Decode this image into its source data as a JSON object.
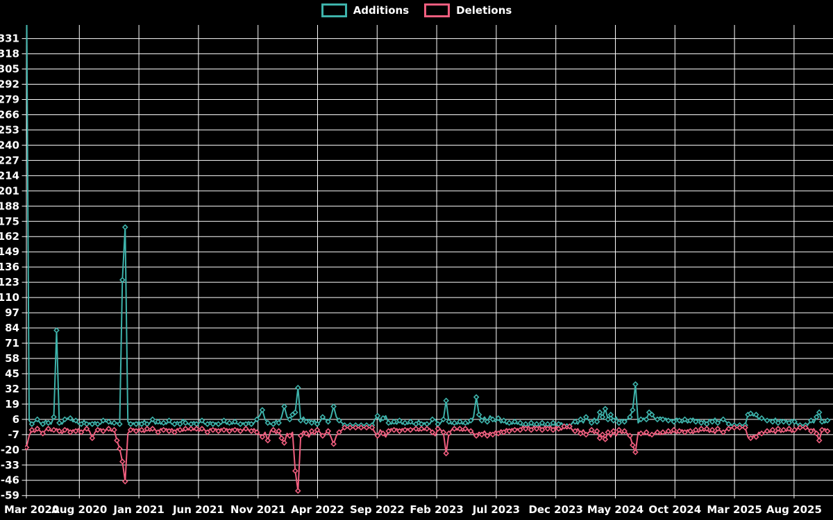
{
  "legend": {
    "items": [
      {
        "label": "Additions"
      },
      {
        "label": "Deletions"
      }
    ]
  },
  "chart_data": {
    "type": "line",
    "background": "#000000",
    "grid": "on",
    "grid_color": "#ffffff",
    "text_color": "#ffffff",
    "legend_position": "top-center",
    "x_unit": "weeks from Mar 2020 to Sep 2025",
    "x_tick_labels": [
      "Mar 2020",
      "Aug 2020",
      "Jan 2021",
      "Jun 2021",
      "Nov 2021",
      "Apr 2022",
      "Sep 2022",
      "Feb 2023",
      "Jul 2023",
      "Dec 2023",
      "May 2024",
      "Oct 2024",
      "Mar 2025",
      "Aug 2025"
    ],
    "y_tick_labels": [
      "331",
      "318",
      "305",
      "292",
      "279",
      "266",
      "253",
      "240",
      "227",
      "214",
      "201",
      "188",
      "175",
      "162",
      "149",
      "136",
      "123",
      "110",
      "97",
      "84",
      "71",
      "58",
      "45",
      "32",
      "19",
      "6",
      "-7",
      "-20",
      "-33",
      "-46",
      "-59"
    ],
    "ylim": [
      -59,
      331
    ],
    "ytick_step": 13,
    "series": [
      {
        "name": "Additions",
        "color": "#3eb3ab",
        "values": [
          400,
          5,
          2,
          4,
          6,
          3,
          2,
          5,
          3,
          2,
          8,
          82,
          3,
          2,
          6,
          7,
          7,
          4,
          5,
          2,
          2,
          5,
          2,
          3,
          2,
          4,
          2,
          2,
          5,
          4,
          4,
          2,
          3,
          3,
          2,
          125,
          170,
          4,
          2,
          3,
          2,
          4,
          2,
          5,
          2,
          3,
          6,
          2,
          4,
          2,
          3,
          2,
          5,
          2,
          2,
          4,
          2,
          6,
          3,
          2,
          2,
          4,
          2,
          3,
          5,
          2,
          2,
          4,
          2,
          3,
          2,
          2,
          5,
          2,
          3,
          2,
          4,
          2,
          2,
          3,
          2,
          4,
          2,
          3,
          6,
          9,
          14,
          6,
          3,
          2,
          2,
          5,
          3,
          8,
          17,
          8,
          6,
          10,
          12,
          33,
          5,
          8,
          4,
          6,
          3,
          5,
          2,
          4,
          8,
          6,
          4,
          8,
          17,
          8,
          5,
          3,
          1,
          1,
          1,
          1,
          1,
          1,
          1,
          1,
          1,
          1,
          1,
          6,
          9,
          4,
          7,
          9,
          3,
          2,
          4,
          2,
          5,
          2,
          3,
          2,
          4,
          2,
          2,
          5,
          2,
          3,
          2,
          2,
          6,
          6,
          2,
          3,
          6,
          22,
          4,
          2,
          3,
          2,
          4,
          2,
          3,
          2,
          5,
          8,
          25,
          10,
          5,
          8,
          4,
          9,
          6,
          4,
          7,
          3,
          5,
          2,
          3,
          2,
          4,
          2,
          3,
          0,
          2,
          0,
          3,
          0,
          2,
          0,
          3,
          0,
          2,
          0,
          3,
          0,
          2,
          3,
          0,
          2,
          0,
          3,
          4,
          2,
          6,
          3,
          8,
          5,
          3,
          7,
          4,
          12,
          8,
          15,
          6,
          10,
          5,
          8,
          3,
          6,
          4,
          6,
          8,
          14,
          36,
          3,
          6,
          7,
          6,
          12,
          10,
          7,
          6,
          8,
          6,
          7,
          5,
          6,
          4,
          7,
          5,
          3,
          6,
          3,
          5,
          7,
          4,
          6,
          3,
          5,
          2,
          6,
          4,
          7,
          3,
          5,
          6,
          4,
          2,
          1,
          1,
          1,
          1,
          1,
          1,
          10,
          11,
          9,
          10,
          6,
          7,
          6,
          5,
          6,
          4,
          7,
          3,
          6,
          4,
          5,
          3,
          6,
          4,
          2,
          1,
          1,
          1,
          2,
          5,
          3,
          8,
          12,
          4,
          3,
          5,
          6
        ]
      },
      {
        "name": "Deletions",
        "color": "#f15e7f",
        "values": [
          -18,
          -8,
          -3,
          -5,
          -2,
          -4,
          -6,
          -3,
          -2,
          -4,
          -3,
          -2,
          -4,
          -6,
          -3,
          -2,
          -5,
          -3,
          -4,
          -2,
          -5,
          -3,
          -2,
          -4,
          -10,
          -5,
          -3,
          -2,
          -4,
          -3,
          -2,
          -4,
          -3,
          -12,
          -19,
          -30,
          -47,
          -6,
          -3,
          -2,
          -4,
          -2,
          -3,
          -5,
          -2,
          -4,
          -2,
          -3,
          -5,
          -2,
          -3,
          -2,
          -4,
          -2,
          -5,
          -2,
          -3,
          -4,
          -2,
          -3,
          -2,
          -3,
          -2,
          -4,
          -2,
          -3,
          -5,
          -2,
          -3,
          -2,
          -4,
          -2,
          -3,
          -2,
          -4,
          -2,
          -3,
          -2,
          -4,
          -3,
          -2,
          -3,
          -4,
          -2,
          -5,
          -7,
          -9,
          -5,
          -12,
          -4,
          -3,
          -6,
          -4,
          -10,
          -14,
          -6,
          -8,
          -5,
          -38,
          -55,
          -8,
          -4,
          -6,
          -9,
          -4,
          -7,
          -3,
          -5,
          -8,
          -6,
          -4,
          -9,
          -15,
          -8,
          -5,
          -3,
          -1,
          -1,
          -1,
          -1,
          -1,
          -1,
          -1,
          -1,
          -1,
          -1,
          -1,
          -5,
          -8,
          -3,
          -6,
          -9,
          -4,
          -2,
          -3,
          -2,
          -4,
          -2,
          -3,
          -2,
          -3,
          -2,
          -2,
          -4,
          -2,
          -3,
          -2,
          -2,
          -5,
          -8,
          -2,
          -3,
          -5,
          -23,
          -6,
          -3,
          -2,
          -3,
          -2,
          -4,
          -2,
          -3,
          -4,
          -6,
          -8,
          -5,
          -7,
          -4,
          -8,
          -5,
          -7,
          -4,
          -6,
          -3,
          -5,
          -2,
          -4,
          -2,
          -3,
          -2,
          -3,
          0,
          -2,
          0,
          -3,
          0,
          -2,
          0,
          -3,
          0,
          -2,
          0,
          -3,
          0,
          -2,
          -3,
          0,
          -2,
          0,
          -3,
          -4,
          -2,
          -6,
          -3,
          -7,
          -5,
          -3,
          -6,
          -4,
          -10,
          -7,
          -11,
          -5,
          -9,
          -4,
          -8,
          -3,
          -6,
          -4,
          -6,
          -8,
          -16,
          -22,
          -5,
          -6,
          -7,
          -5,
          -8,
          -7,
          -6,
          -5,
          -7,
          -5,
          -6,
          -4,
          -6,
          -3,
          -6,
          -4,
          -3,
          -5,
          -3,
          -4,
          -6,
          -3,
          -5,
          -2,
          -4,
          -2,
          -5,
          -3,
          -6,
          -2,
          -4,
          -5,
          -3,
          -2,
          -1,
          -1,
          -1,
          -1,
          -1,
          -1,
          -9,
          -10,
          -8,
          -9,
          -5,
          -6,
          -5,
          -4,
          -5,
          -3,
          -6,
          -2,
          -5,
          -3,
          -4,
          -2,
          -5,
          -3,
          -2,
          -1,
          -1,
          -1,
          -2,
          -4,
          -2,
          -6,
          -12,
          -3,
          -2,
          -4,
          -4
        ]
      }
    ]
  }
}
